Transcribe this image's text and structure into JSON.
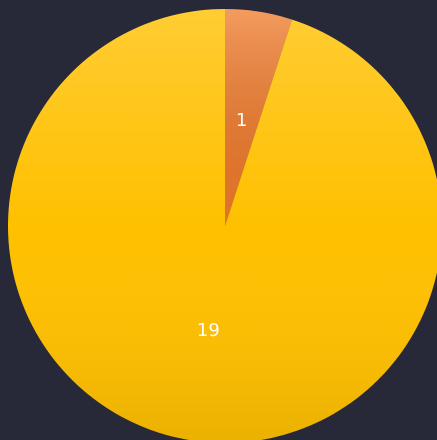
{
  "chart_data": {
    "type": "pie",
    "values": [
      1,
      19
    ],
    "colors": [
      "#f07a2a",
      "#ffc000"
    ]
  }
}
